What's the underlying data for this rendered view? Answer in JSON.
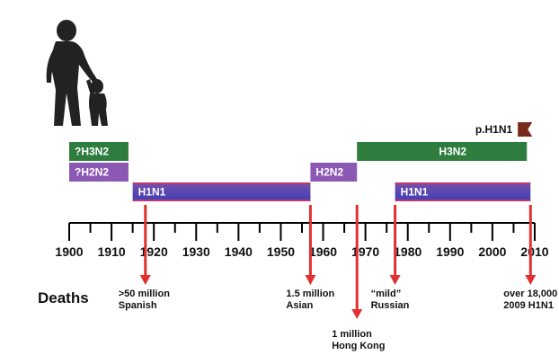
{
  "colors": {
    "h3n2": "#2e7d3e",
    "h2n2": "#8b59b4",
    "h1n1_top": "#7a4fa8",
    "h1n1_bottom": "#3a3fb8",
    "h1n1_stripe": "#c0396b",
    "ph1n1": "#7a2a1a",
    "arrow": "#e03030",
    "axis": "#000000",
    "silhouette": "#222222"
  },
  "timeline": {
    "start_year": 1900,
    "end_year": 2010,
    "ticks": [
      "1900",
      "1910",
      "1920",
      "1930",
      "1940",
      "1950",
      "1960",
      "1970",
      "1980",
      "1990",
      "2000",
      "2010"
    ]
  },
  "subtypes": [
    {
      "id": "q-h3n2",
      "label": "?H3N2",
      "start": 1900,
      "end": 1914,
      "row": 1,
      "kind": "h3n2"
    },
    {
      "id": "q-h2n2",
      "label": "?H2N2",
      "start": 1900,
      "end": 1914,
      "row": 2,
      "kind": "h2n2"
    },
    {
      "id": "h1n1-early",
      "label": "H1N1",
      "start": 1915,
      "end": 1957,
      "row": 3,
      "kind": "h1n1"
    },
    {
      "id": "h2n2",
      "label": "H2N2",
      "start": 1957,
      "end": 1968,
      "row": 2,
      "kind": "h2n2"
    },
    {
      "id": "h3n2",
      "label": "H3N2",
      "start": 1968,
      "end": 2009,
      "row": 1,
      "kind": "h3n2"
    },
    {
      "id": "h1n1-late",
      "label": "H1N1",
      "start": 1977,
      "end": 2009,
      "row": 3,
      "kind": "h1n1"
    },
    {
      "id": "ph1n1",
      "label": "p.H1N1",
      "start": 2006,
      "end": 2009,
      "row": 0,
      "kind": "ph1n1"
    }
  ],
  "deaths_heading": "Deaths",
  "pandemics": [
    {
      "id": "spanish",
      "year": 1918,
      "line1": ">50 million",
      "line2": "Spanish",
      "depth": "short"
    },
    {
      "id": "asian",
      "year": 1957,
      "line1": "1.5 million",
      "line2": "Asian",
      "depth": "short"
    },
    {
      "id": "hong-kong",
      "year": 1968,
      "line1": "1 million",
      "line2": "Hong Kong",
      "depth": "long"
    },
    {
      "id": "russian",
      "year": 1977,
      "line1": "“mild”",
      "line2": "Russian",
      "depth": "short"
    },
    {
      "id": "h1n1-2009",
      "year": 2009,
      "line1": "over 18,000",
      "line2": "2009 H1N1",
      "depth": "short"
    }
  ],
  "icons": {
    "silhouette": "adult-and-child-silhouette-icon"
  }
}
